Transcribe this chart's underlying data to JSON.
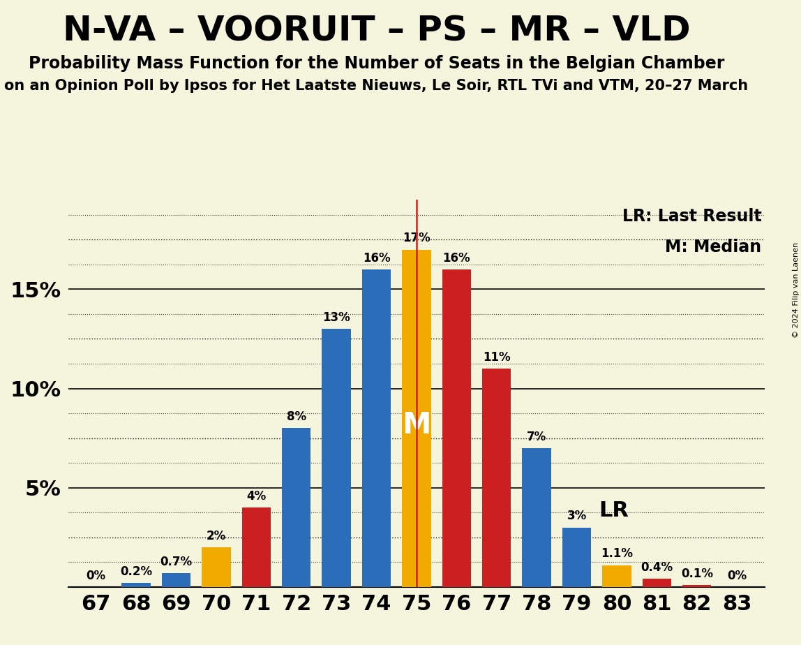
{
  "title": "N-VA – VOORUIT – PS – MR – VLD",
  "subtitle": "Probability Mass Function for the Number of Seats in the Belgian Chamber",
  "subtitle2": "on an Opinion Poll by Ipsos for Het Laatste Nieuws, Le Soir, RTL TVi and VTM, 20–27 March",
  "copyright": "© 2024 Filip van Laenen",
  "seats": [
    67,
    68,
    69,
    70,
    71,
    72,
    73,
    74,
    75,
    76,
    77,
    78,
    79,
    80,
    81,
    82,
    83
  ],
  "values": [
    0.0,
    0.2,
    0.7,
    2.0,
    4.0,
    8.0,
    13.0,
    16.0,
    17.0,
    16.0,
    11.0,
    7.0,
    3.0,
    1.1,
    0.4,
    0.1,
    0.0
  ],
  "labels": [
    "0%",
    "0.2%",
    "0.7%",
    "2%",
    "4%",
    "8%",
    "13%",
    "16%",
    "17%",
    "16%",
    "11%",
    "7%",
    "3%",
    "1.1%",
    "0.4%",
    "0.1%",
    "0%"
  ],
  "colors": [
    "#2b6db8",
    "#2b6db8",
    "#2b6db8",
    "#f0aa00",
    "#cc1f1f",
    "#2b6db8",
    "#2b6db8",
    "#2b6db8",
    "#f0aa00",
    "#cc1f1f",
    "#cc1f1f",
    "#2b6db8",
    "#2b6db8",
    "#f0aa00",
    "#cc1f1f",
    "#cc1f1f",
    "#cc1f1f"
  ],
  "median_seat": 75,
  "lr_seat": 75,
  "background_color": "#f5f4dc",
  "ylim_max": 19.5,
  "median_label": "M",
  "lr_label": "LR",
  "legend_lr": "LR: Last Result",
  "legend_m": "M: Median",
  "bar_width": 0.72,
  "title_fontsize": 36,
  "subtitle_fontsize": 17,
  "subtitle2_fontsize": 15,
  "ytick_fontsize": 22,
  "xtick_fontsize": 22,
  "label_fontsize": 12,
  "m_fontsize": 30,
  "lr_text_fontsize": 22,
  "legend_fontsize": 17
}
